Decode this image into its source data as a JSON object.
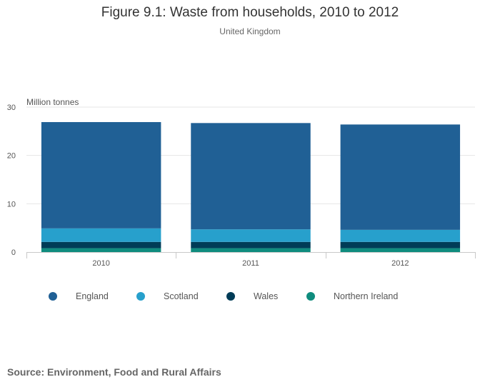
{
  "title": "Figure 9.1: Waste from households, 2010 to 2012",
  "subtitle": "United Kingdom",
  "source": "Source: Environment, Food and Rural Affairs",
  "chart_data": {
    "type": "bar",
    "stacked": true,
    "categories": [
      "2010",
      "2011",
      "2012"
    ],
    "ylabel": "Million tonnes",
    "xlabel": "",
    "ylim": [
      0,
      30
    ],
    "yticks": [
      0,
      10,
      20,
      30
    ],
    "grid": true,
    "legend_position": "bottom-left",
    "series": [
      {
        "name": "Northern Ireland",
        "color": "#0f8c7e",
        "values": [
          0.8,
          0.8,
          0.8
        ]
      },
      {
        "name": "Wales",
        "color": "#003c57",
        "values": [
          1.3,
          1.3,
          1.3
        ]
      },
      {
        "name": "Scotland",
        "color": "#27a0cc",
        "values": [
          2.8,
          2.6,
          2.5
        ]
      },
      {
        "name": "England",
        "color": "#206095",
        "values": [
          22.0,
          22.0,
          21.8
        ]
      }
    ]
  },
  "legend": [
    {
      "label": "England",
      "color": "#206095"
    },
    {
      "label": "Scotland",
      "color": "#27a0cc"
    },
    {
      "label": "Wales",
      "color": "#003c57"
    },
    {
      "label": "Northern Ireland",
      "color": "#0f8c7e"
    }
  ]
}
